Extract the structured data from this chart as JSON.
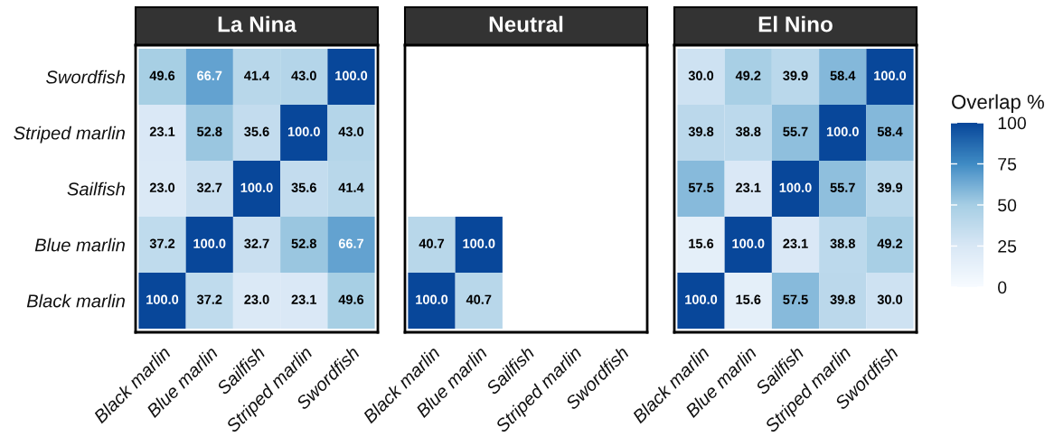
{
  "chart_data": [
    {
      "type": "heatmap",
      "title": "La Nina",
      "categories": [
        "Black marlin",
        "Blue marlin",
        "Sailfish",
        "Striped marlin",
        "Swordfish"
      ],
      "y_categories": [
        "Swordfish",
        "Striped marlin",
        "Sailfish",
        "Blue marlin",
        "Black marlin"
      ],
      "cells": [
        [
          49.6,
          66.7,
          41.4,
          43.0,
          100.0
        ],
        [
          23.1,
          52.8,
          35.6,
          100.0,
          43.0
        ],
        [
          23.0,
          32.7,
          100.0,
          35.6,
          41.4
        ],
        [
          37.2,
          100.0,
          32.7,
          52.8,
          66.7
        ],
        [
          100.0,
          37.2,
          23.0,
          23.1,
          49.6
        ]
      ],
      "cell_labels": [
        [
          "49.6",
          "66.7",
          "41.4",
          "43.0",
          "100.0"
        ],
        [
          "23.1",
          "52.8",
          "35.6",
          "100.0",
          "43.0"
        ],
        [
          "23.0",
          "32.7",
          "100.0",
          "35.6",
          "41.4"
        ],
        [
          "37.2",
          "100.0",
          "32.7",
          "52.8",
          "66.7"
        ],
        [
          "100.0",
          "37.2",
          "23.0",
          "23.1",
          "49.6"
        ]
      ]
    },
    {
      "type": "heatmap",
      "title": "Neutral",
      "categories": [
        "Black marlin",
        "Blue marlin",
        "Sailfish",
        "Striped marlin",
        "Swordfish"
      ],
      "y_categories": [
        "Swordfish",
        "Striped marlin",
        "Sailfish",
        "Blue marlin",
        "Black marlin"
      ],
      "cells": [
        [
          null,
          null,
          null,
          null,
          null
        ],
        [
          null,
          null,
          null,
          null,
          null
        ],
        [
          null,
          null,
          null,
          null,
          null
        ],
        [
          40.7,
          100.0,
          null,
          null,
          null
        ],
        [
          100.0,
          40.7,
          null,
          null,
          null
        ]
      ],
      "cell_labels": [
        [
          null,
          null,
          null,
          null,
          null
        ],
        [
          null,
          null,
          null,
          null,
          null
        ],
        [
          null,
          null,
          null,
          null,
          null
        ],
        [
          "40.7",
          "100.0",
          null,
          null,
          null
        ],
        [
          "100.0",
          "40.7",
          null,
          null,
          null
        ]
      ],
      "tick_labels": "x"
    },
    {
      "type": "heatmap",
      "title": "El Nino",
      "categories": [
        "Black marlin",
        "Blue marlin",
        "Sailfish",
        "Striped marlin",
        "Swordfish"
      ],
      "y_categories": [
        "Swordfish",
        "Striped marlin",
        "Sailfish",
        "Blue marlin",
        "Black marlin"
      ],
      "cells": [
        [
          30.0,
          49.2,
          39.9,
          58.4,
          100.0
        ],
        [
          39.8,
          38.8,
          55.7,
          100.0,
          58.4
        ],
        [
          57.5,
          23.1,
          100.0,
          55.7,
          39.9
        ],
        [
          15.6,
          100.0,
          23.1,
          38.8,
          49.2
        ],
        [
          100.0,
          15.6,
          57.5,
          39.8,
          30.0
        ]
      ],
      "cell_labels": [
        [
          "30.0",
          "49.2",
          "39.9",
          "58.4",
          "100.0"
        ],
        [
          "39.8",
          "38.8",
          "55.7",
          "100.0",
          "58.4"
        ],
        [
          "57.5",
          "23.1",
          "100.0",
          "55.7",
          "39.9"
        ],
        [
          "15.6",
          "100.0",
          "23.1",
          "38.8",
          "49.2"
        ],
        [
          "100.0",
          "15.6",
          "57.5",
          "39.8",
          "30.0"
        ]
      ],
      "tick_labels": "x",
      "clabel": "Overlap %",
      "clim": [
        0,
        100
      ],
      "cticks": [
        0,
        25,
        50,
        75,
        100
      ]
    }
  ]
}
